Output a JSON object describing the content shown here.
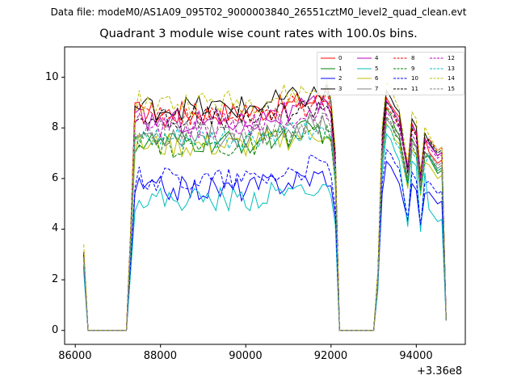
{
  "header": {
    "data_file": "Data file: modeM0/AS1A09_095T02_9000003840_26551cztM0_level2_quad_clean.evt"
  },
  "chart_data": {
    "type": "line",
    "title": "Quadrant 3 module wise count rates with 100.0s bins.",
    "xlabel": "",
    "ylabel": "",
    "offset_label": "+3.36e8",
    "xlim": [
      85750,
      95150
    ],
    "ylim": [
      -0.55,
      11.2
    ],
    "x_ticks": [
      86000,
      88000,
      90000,
      92000,
      94000
    ],
    "x_tick_labels": [
      "86000",
      "88000",
      "90000",
      "92000",
      "94000"
    ],
    "y_ticks": [
      0,
      2,
      4,
      6,
      8,
      10
    ],
    "y_tick_labels": [
      "0",
      "2",
      "4",
      "6",
      "8",
      "10"
    ],
    "legend_position": "upper-right",
    "segments": [
      {
        "x_start": 86200,
        "x_end": 86300,
        "step": 100
      },
      {
        "x_start": 87200,
        "x_end": 92200,
        "step": 100
      },
      {
        "x_start": 93000,
        "x_end": 94700,
        "step": 100
      }
    ],
    "series": [
      {
        "name": "0",
        "color": "#ff0000",
        "dash": "solid",
        "level": 8.6,
        "seg1": [
          3.0,
          0.0
        ],
        "seg3_start": 2.2,
        "seg3_peak": 9.3,
        "seg3_end": 6.6,
        "seg3_dip": 6.3
      },
      {
        "name": "1",
        "color": "#008000",
        "dash": "solid",
        "level": 7.4,
        "seg1": [
          2.9,
          0.0
        ],
        "seg3_start": 2.0,
        "seg3_peak": 8.6,
        "seg3_end": 6.2,
        "seg3_dip": 5.8
      },
      {
        "name": "2",
        "color": "#0000ff",
        "dash": "solid",
        "level": 5.6,
        "seg1": [
          2.5,
          0.0
        ],
        "seg3_start": 1.8,
        "seg3_peak": 6.6,
        "seg3_end": 5.0,
        "seg3_dip": 4.3
      },
      {
        "name": "3",
        "color": "#000000",
        "dash": "solid",
        "level": 8.8,
        "seg1": [
          3.1,
          0.0
        ],
        "seg3_start": 2.2,
        "seg3_peak": 9.5,
        "seg3_end": 6.9,
        "seg3_dip": 6.2
      },
      {
        "name": "4",
        "color": "#bf00bf",
        "dash": "solid",
        "level": 8.3,
        "seg1": [
          3.0,
          0.0
        ],
        "seg3_start": 2.1,
        "seg3_peak": 9.2,
        "seg3_end": 6.9,
        "seg3_dip": 6.5
      },
      {
        "name": "5",
        "color": "#00bfbf",
        "dash": "solid",
        "level": 5.2,
        "seg1": [
          2.3,
          0.0
        ],
        "seg3_start": 1.6,
        "seg3_peak": 7.6,
        "seg3_end": 4.3,
        "seg3_dip": 4.1
      },
      {
        "name": "6",
        "color": "#bfbf00",
        "dash": "solid",
        "level": 7.3,
        "seg1": [
          2.8,
          0.0
        ],
        "seg3_start": 1.9,
        "seg3_peak": 8.1,
        "seg3_end": 6.0,
        "seg3_dip": 5.6
      },
      {
        "name": "7",
        "color": "#808080",
        "dash": "solid",
        "level": 7.7,
        "seg1": [
          2.8,
          0.0
        ],
        "seg3_start": 2.0,
        "seg3_peak": 8.4,
        "seg3_end": 6.4,
        "seg3_dip": 6.0
      },
      {
        "name": "8",
        "color": "#ff0000",
        "dash": "dashed",
        "level": 8.5,
        "seg1": [
          3.1,
          0.0
        ],
        "seg3_start": 2.3,
        "seg3_peak": 9.0,
        "seg3_end": 7.1,
        "seg3_dip": 6.6
      },
      {
        "name": "9",
        "color": "#008000",
        "dash": "dashed",
        "level": 7.3,
        "seg1": [
          2.8,
          0.0
        ],
        "seg3_start": 2.0,
        "seg3_peak": 8.3,
        "seg3_end": 6.3,
        "seg3_dip": 5.8
      },
      {
        "name": "10",
        "color": "#0000ff",
        "dash": "dashed",
        "level": 6.0,
        "seg1": [
          2.6,
          0.0
        ],
        "seg3_start": 1.9,
        "seg3_peak": 7.1,
        "seg3_end": 5.4,
        "seg3_dip": 4.4
      },
      {
        "name": "11",
        "color": "#000000",
        "dash": "dashed",
        "level": 8.4,
        "seg1": [
          3.0,
          0.0
        ],
        "seg3_start": 2.2,
        "seg3_peak": 9.1,
        "seg3_end": 7.0,
        "seg3_dip": 6.4
      },
      {
        "name": "12",
        "color": "#bf00bf",
        "dash": "dashed",
        "level": 8.1,
        "seg1": [
          2.9,
          0.0
        ],
        "seg3_start": 2.1,
        "seg3_peak": 8.8,
        "seg3_end": 6.8,
        "seg3_dip": 6.3
      },
      {
        "name": "13",
        "color": "#00bfbf",
        "dash": "dashed",
        "level": 7.5,
        "seg1": [
          2.8,
          0.0
        ],
        "seg3_start": 2.0,
        "seg3_peak": 8.0,
        "seg3_end": 6.3,
        "seg3_dip": 5.7
      },
      {
        "name": "14",
        "color": "#bfbf00",
        "dash": "dashed",
        "level": 9.0,
        "seg1": [
          3.4,
          0.0
        ],
        "seg3_start": 2.4,
        "seg3_peak": 9.8,
        "seg3_end": 7.1,
        "seg3_dip": 6.6
      },
      {
        "name": "15",
        "color": "#808080",
        "dash": "dashed",
        "level": 7.8,
        "seg1": [
          2.9,
          0.0
        ],
        "seg3_start": 2.0,
        "seg3_peak": 8.5,
        "seg3_end": 6.5,
        "seg3_dip": 6.0
      }
    ]
  }
}
